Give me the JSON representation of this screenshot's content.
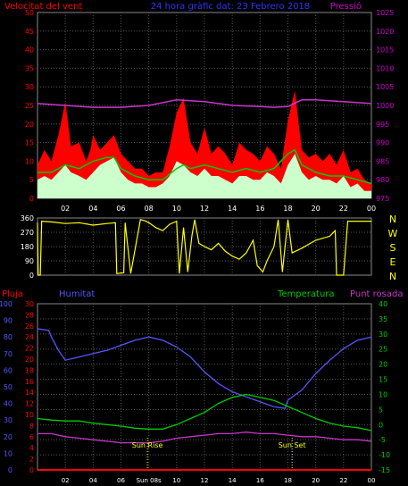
{
  "header": {
    "wind_title": "Velocitat del vent",
    "center_title": "24 hora gràfic dat:  23 Febrero 2018",
    "pressure_title": "Pressió"
  },
  "direction_labels": [
    "N",
    "W",
    "S",
    "E",
    "N"
  ],
  "lower_header": {
    "rain": "Pluja",
    "humidity": "Humitat",
    "temperature": "Temperatura",
    "dewpoint": "Punt rosada"
  },
  "annotations": {
    "sunrise": "Sun Rise",
    "sunset": "Sun Set"
  },
  "x_ticks": [
    "02",
    "04",
    "06",
    "08",
    "10",
    "12",
    "14",
    "16",
    "18",
    "20",
    "22",
    "00"
  ],
  "lower_x_ticks": [
    "02",
    "04",
    "06",
    "Sun 08s",
    "10",
    "12",
    "14",
    "16",
    "18",
    "20",
    "22",
    "00"
  ],
  "colors": {
    "wind_gust": "#ff0000",
    "wind_speed": "#ccffcc",
    "wind_avg": "#00cc00",
    "pressure": "#cc33cc",
    "direction": "#ffff00",
    "humidity": "#5555ff",
    "temperature": "#00cc00",
    "dewpoint": "#cc33cc",
    "rain": "#ff0000",
    "wind_axis": "#ff0000",
    "pressure_axis": "#cc00cc"
  },
  "chart_data": [
    {
      "type": "area",
      "name": "wind",
      "x_unit": "hour",
      "x_range": [
        0,
        24
      ],
      "y_left_range": [
        0,
        50
      ],
      "y_left_ticks": [
        0,
        5,
        10,
        15,
        20,
        25,
        30,
        35,
        40,
        45,
        50
      ],
      "y_right_range": [
        975,
        1025
      ],
      "y_right_ticks": [
        975,
        980,
        985,
        990,
        995,
        1000,
        1005,
        1010,
        1015,
        1020,
        1025
      ],
      "gust": [
        [
          0,
          9
        ],
        [
          0.5,
          13
        ],
        [
          1,
          10
        ],
        [
          1.5,
          17
        ],
        [
          2,
          26
        ],
        [
          2.4,
          14
        ],
        [
          3,
          15
        ],
        [
          3.5,
          10
        ],
        [
          3.8,
          13
        ],
        [
          4,
          17
        ],
        [
          4.5,
          13
        ],
        [
          5,
          15
        ],
        [
          5.5,
          17
        ],
        [
          6,
          12
        ],
        [
          6.5,
          10
        ],
        [
          7,
          8
        ],
        [
          7.5,
          8
        ],
        [
          8,
          6
        ],
        [
          8.5,
          7
        ],
        [
          9,
          7
        ],
        [
          9.5,
          14
        ],
        [
          10,
          23
        ],
        [
          10.5,
          27
        ],
        [
          11,
          15
        ],
        [
          11.5,
          12
        ],
        [
          12,
          19
        ],
        [
          12.5,
          12
        ],
        [
          13,
          14
        ],
        [
          13.5,
          12
        ],
        [
          14,
          9
        ],
        [
          14.5,
          15
        ],
        [
          15,
          13
        ],
        [
          15.5,
          12
        ],
        [
          16,
          10
        ],
        [
          16.5,
          14
        ],
        [
          17,
          12
        ],
        [
          17.5,
          8
        ],
        [
          18,
          21
        ],
        [
          18.5,
          29
        ],
        [
          19,
          13
        ],
        [
          19.5,
          11
        ],
        [
          20,
          12
        ],
        [
          20.5,
          10
        ],
        [
          21,
          12
        ],
        [
          21.5,
          9
        ],
        [
          22,
          13
        ],
        [
          22.5,
          7
        ],
        [
          23,
          8
        ],
        [
          23.5,
          5
        ],
        [
          24,
          4
        ]
      ],
      "speed": [
        [
          0,
          5
        ],
        [
          0.5,
          6
        ],
        [
          1,
          5
        ],
        [
          1.5,
          7
        ],
        [
          2,
          9
        ],
        [
          2.4,
          7
        ],
        [
          3,
          6
        ],
        [
          3.5,
          5
        ],
        [
          4,
          7
        ],
        [
          4.5,
          9
        ],
        [
          5,
          10
        ],
        [
          5.5,
          11
        ],
        [
          6,
          7
        ],
        [
          6.5,
          5
        ],
        [
          7,
          4
        ],
        [
          7.5,
          4
        ],
        [
          8,
          3
        ],
        [
          8.5,
          3
        ],
        [
          9,
          4
        ],
        [
          9.5,
          6
        ],
        [
          10,
          10
        ],
        [
          10.5,
          9
        ],
        [
          11,
          7
        ],
        [
          11.5,
          6
        ],
        [
          12,
          8
        ],
        [
          12.5,
          6
        ],
        [
          13,
          6
        ],
        [
          13.5,
          5
        ],
        [
          14,
          4
        ],
        [
          14.5,
          6
        ],
        [
          15,
          6
        ],
        [
          15.5,
          5
        ],
        [
          16,
          5
        ],
        [
          16.5,
          7
        ],
        [
          17,
          6
        ],
        [
          17.5,
          4
        ],
        [
          18,
          9
        ],
        [
          18.5,
          12
        ],
        [
          19,
          7
        ],
        [
          19.5,
          5
        ],
        [
          20,
          6
        ],
        [
          20.5,
          5
        ],
        [
          21,
          5
        ],
        [
          21.5,
          4
        ],
        [
          22,
          6
        ],
        [
          22.5,
          3
        ],
        [
          23,
          4
        ],
        [
          23.5,
          2
        ],
        [
          24,
          2
        ]
      ],
      "average": [
        [
          0,
          7
        ],
        [
          1,
          7
        ],
        [
          2,
          9
        ],
        [
          3,
          8
        ],
        [
          4,
          10
        ],
        [
          5,
          11
        ],
        [
          5.5,
          11
        ],
        [
          6,
          8
        ],
        [
          7,
          6
        ],
        [
          8,
          5
        ],
        [
          9,
          5
        ],
        [
          10,
          8
        ],
        [
          10.5,
          9
        ],
        [
          11,
          8
        ],
        [
          12,
          9
        ],
        [
          13,
          8
        ],
        [
          14,
          7
        ],
        [
          15,
          8
        ],
        [
          16,
          7
        ],
        [
          17,
          8
        ],
        [
          18,
          12
        ],
        [
          18.5,
          13
        ],
        [
          19,
          9
        ],
        [
          20,
          7
        ],
        [
          21,
          6
        ],
        [
          22,
          6
        ],
        [
          23,
          5
        ],
        [
          24,
          4
        ]
      ],
      "pressure": [
        [
          0,
          1000.5
        ],
        [
          2,
          1000
        ],
        [
          4,
          999.5
        ],
        [
          6,
          999.5
        ],
        [
          8,
          1000
        ],
        [
          10,
          1001.5
        ],
        [
          12,
          1001
        ],
        [
          14,
          1000
        ],
        [
          16,
          999.7
        ],
        [
          17,
          999.5
        ],
        [
          18,
          999.7
        ],
        [
          19,
          1001.5
        ],
        [
          20,
          1001.5
        ],
        [
          22,
          1001
        ],
        [
          24,
          1000.5
        ]
      ]
    },
    {
      "type": "line",
      "name": "wind_direction",
      "x_unit": "hour",
      "x_range": [
        0,
        24
      ],
      "y_range": [
        0,
        360
      ],
      "y_ticks": [
        0,
        90,
        180,
        270,
        360
      ],
      "values": [
        [
          0,
          330
        ],
        [
          0.05,
          0
        ],
        [
          0.2,
          0
        ],
        [
          0.3,
          340
        ],
        [
          1,
          335
        ],
        [
          2,
          325
        ],
        [
          3,
          330
        ],
        [
          4,
          315
        ],
        [
          5,
          325
        ],
        [
          5.6,
          330
        ],
        [
          5.7,
          10
        ],
        [
          6.2,
          15
        ],
        [
          6.3,
          330
        ],
        [
          6.7,
          10
        ],
        [
          7.4,
          350
        ],
        [
          7.8,
          340
        ],
        [
          8,
          330
        ],
        [
          8.5,
          300
        ],
        [
          9,
          280
        ],
        [
          9.5,
          320
        ],
        [
          10,
          340
        ],
        [
          10.2,
          10
        ],
        [
          10.5,
          300
        ],
        [
          10.8,
          20
        ],
        [
          11.1,
          250
        ],
        [
          11.3,
          350
        ],
        [
          11.6,
          200
        ],
        [
          12,
          180
        ],
        [
          12.5,
          160
        ],
        [
          13,
          200
        ],
        [
          13.5,
          150
        ],
        [
          14,
          120
        ],
        [
          14.5,
          100
        ],
        [
          15,
          140
        ],
        [
          15.5,
          220
        ],
        [
          15.8,
          60
        ],
        [
          16.2,
          20
        ],
        [
          16.5,
          90
        ],
        [
          17,
          180
        ],
        [
          17.3,
          350
        ],
        [
          17.6,
          20
        ],
        [
          18,
          350
        ],
        [
          18.3,
          140
        ],
        [
          19,
          170
        ],
        [
          20,
          220
        ],
        [
          21,
          245
        ],
        [
          21.4,
          280
        ],
        [
          21.5,
          0
        ],
        [
          22,
          0
        ],
        [
          22.3,
          340
        ],
        [
          24,
          340
        ]
      ]
    },
    {
      "type": "line",
      "name": "humidity_temperature",
      "x_unit": "hour",
      "x_range": [
        0,
        24
      ],
      "y_left_range": [
        0,
        100
      ],
      "y_left_ticks": [
        0,
        10,
        20,
        30,
        40,
        50,
        60,
        70,
        80,
        90,
        100
      ],
      "y_rain_range": [
        0,
        30
      ],
      "y_rain_ticks": [
        0,
        2,
        4,
        6,
        8,
        10,
        12,
        14,
        16,
        18,
        20,
        22,
        24,
        26,
        28,
        30
      ],
      "y_right_range": [
        -15,
        40
      ],
      "y_right_ticks": [
        -15,
        -10,
        -5,
        0,
        5,
        10,
        15,
        20,
        25,
        30,
        35,
        40
      ],
      "humidity": [
        [
          0,
          85
        ],
        [
          0.8,
          84
        ],
        [
          1,
          80
        ],
        [
          1.5,
          72
        ],
        [
          2,
          66
        ],
        [
          3,
          68
        ],
        [
          4,
          70
        ],
        [
          5,
          72
        ],
        [
          6,
          75
        ],
        [
          7,
          78
        ],
        [
          8,
          80
        ],
        [
          9,
          78
        ],
        [
          10,
          74
        ],
        [
          11,
          68
        ],
        [
          12,
          59
        ],
        [
          13,
          52
        ],
        [
          14,
          47
        ],
        [
          15,
          44
        ],
        [
          16,
          41
        ],
        [
          17,
          38
        ],
        [
          17.8,
          37
        ],
        [
          18,
          42
        ],
        [
          19,
          48
        ],
        [
          20,
          58
        ],
        [
          21,
          66
        ],
        [
          22,
          73
        ],
        [
          23,
          78
        ],
        [
          24,
          80
        ]
      ],
      "temperature": [
        [
          0,
          2
        ],
        [
          1,
          1.5
        ],
        [
          2,
          1.2
        ],
        [
          3,
          1.2
        ],
        [
          4,
          0.5
        ],
        [
          5,
          0
        ],
        [
          6,
          -0.5
        ],
        [
          7,
          -1.2
        ],
        [
          8,
          -1.5
        ],
        [
          9,
          -1.5
        ],
        [
          10,
          0
        ],
        [
          11,
          2
        ],
        [
          12,
          4
        ],
        [
          13,
          7
        ],
        [
          14,
          9
        ],
        [
          15,
          10
        ],
        [
          16,
          9
        ],
        [
          17,
          8
        ],
        [
          18,
          6
        ],
        [
          19,
          4
        ],
        [
          20,
          2
        ],
        [
          21,
          0.5
        ],
        [
          22,
          -0.5
        ],
        [
          23,
          -1
        ],
        [
          24,
          -2
        ]
      ],
      "dewpoint": [
        [
          0,
          -3
        ],
        [
          1,
          -3
        ],
        [
          2,
          -4
        ],
        [
          3,
          -4.5
        ],
        [
          4,
          -5
        ],
        [
          5,
          -5.5
        ],
        [
          6,
          -6
        ],
        [
          7,
          -6
        ],
        [
          8,
          -6
        ],
        [
          9,
          -5.5
        ],
        [
          10,
          -4.5
        ],
        [
          11,
          -4
        ],
        [
          12,
          -3.5
        ],
        [
          13,
          -3
        ],
        [
          14,
          -3
        ],
        [
          15,
          -2.5
        ],
        [
          16,
          -3
        ],
        [
          17,
          -3
        ],
        [
          18,
          -3.5
        ],
        [
          19,
          -4
        ],
        [
          20,
          -4
        ],
        [
          21,
          -4.5
        ],
        [
          22,
          -5
        ],
        [
          23,
          -5
        ],
        [
          24,
          -5.5
        ]
      ],
      "rain": [
        [
          0,
          0
        ],
        [
          24,
          0
        ]
      ],
      "sunrise_hour": 7.9,
      "sunset_hour": 18.3
    }
  ]
}
